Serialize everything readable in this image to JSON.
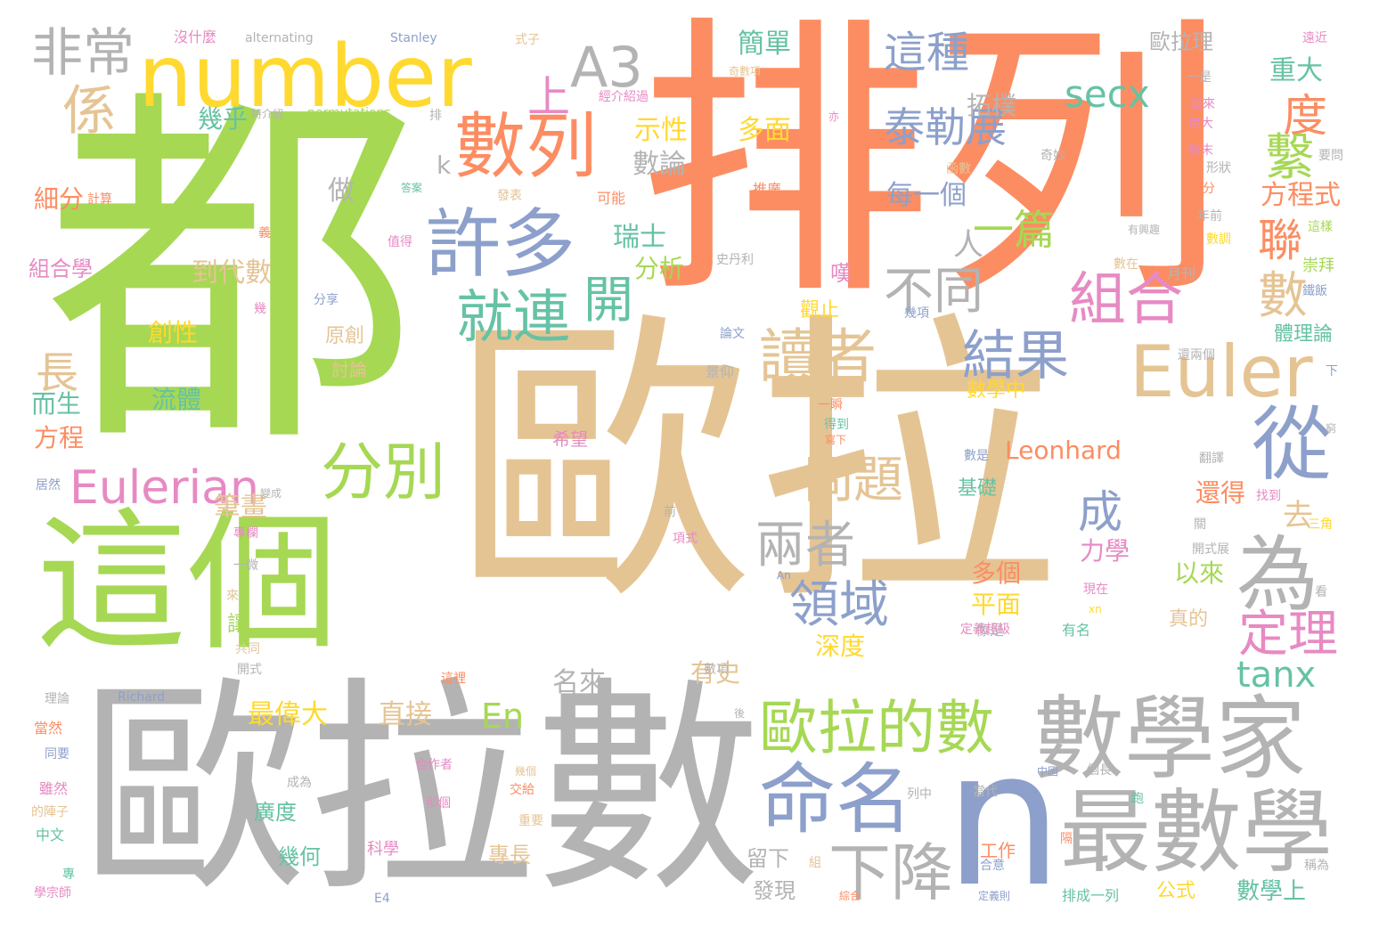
{
  "palette": {
    "green": "#a6d854",
    "orange": "#fc8d62",
    "tan": "#e5c494",
    "gray": "#b3b3b3",
    "blue": "#8da0cb",
    "teal": "#66c2a5",
    "pink": "#e78ac3",
    "yellow": "#ffd92f"
  },
  "words": [
    {
      "text": "歐拉",
      "color": "tan"
    },
    {
      "text": "排列",
      "color": "orange"
    },
    {
      "text": "都",
      "color": "green"
    },
    {
      "text": "歐拉數",
      "color": "gray"
    },
    {
      "text": "這個",
      "color": "green"
    },
    {
      "text": "number",
      "color": "yellow"
    },
    {
      "text": "數學家",
      "color": "gray"
    },
    {
      "text": "n",
      "color": "blue"
    },
    {
      "text": "最數學",
      "color": "gray"
    },
    {
      "text": "數列",
      "color": "orange"
    },
    {
      "text": "許多",
      "color": "blue"
    },
    {
      "text": "Euler",
      "color": "tan"
    },
    {
      "text": "A3",
      "color": "gray"
    },
    {
      "text": "命名",
      "color": "blue"
    },
    {
      "text": "歐拉的數",
      "color": "green"
    },
    {
      "text": "讀者",
      "color": "tan"
    },
    {
      "text": "從",
      "color": "blue"
    },
    {
      "text": "為",
      "color": "gray"
    },
    {
      "text": "Eulerian",
      "color": "pink"
    },
    {
      "text": "分別",
      "color": "green"
    },
    {
      "text": "下降",
      "color": "gray"
    },
    {
      "text": "就連",
      "color": "teal"
    },
    {
      "text": "組合",
      "color": "pink"
    },
    {
      "text": "結果",
      "color": "blue"
    },
    {
      "text": "非常",
      "color": "gray"
    },
    {
      "text": "係",
      "color": "tan"
    },
    {
      "text": "這種",
      "color": "blue"
    },
    {
      "text": "泰勒展",
      "color": "blue"
    },
    {
      "text": "問題",
      "color": "tan"
    },
    {
      "text": "兩者",
      "color": "gray"
    },
    {
      "text": "領域",
      "color": "blue"
    },
    {
      "text": "定理",
      "color": "pink"
    },
    {
      "text": "不同",
      "color": "gray"
    },
    {
      "text": "一篇",
      "color": "green"
    },
    {
      "text": "成",
      "color": "blue"
    },
    {
      "text": "開",
      "color": "teal"
    },
    {
      "text": "數",
      "color": "tan"
    },
    {
      "text": "繫",
      "color": "green"
    },
    {
      "text": "聯",
      "color": "orange"
    },
    {
      "text": "度",
      "color": "orange"
    },
    {
      "text": "長",
      "color": "tan"
    },
    {
      "text": "secx",
      "color": "teal"
    },
    {
      "text": "tanx",
      "color": "teal"
    },
    {
      "text": "En",
      "color": "green"
    },
    {
      "text": "上",
      "color": "pink"
    },
    {
      "text": "Leonhard",
      "color": "orange"
    },
    {
      "text": "方程式",
      "color": "orange"
    },
    {
      "text": "拓樸",
      "color": "gray"
    },
    {
      "text": "每一個",
      "color": "blue"
    },
    {
      "text": "人",
      "color": "gray"
    },
    {
      "text": "去",
      "color": "tan"
    },
    {
      "text": "簡單",
      "color": "teal"
    },
    {
      "text": "多面",
      "color": "yellow"
    },
    {
      "text": "數論",
      "color": "gray"
    },
    {
      "text": "示性",
      "color": "yellow"
    },
    {
      "text": "瑞士",
      "color": "teal"
    },
    {
      "text": "分析",
      "color": "green"
    },
    {
      "text": "重大",
      "color": "teal"
    },
    {
      "text": "歐拉理",
      "color": "gray"
    },
    {
      "text": "幾乎",
      "color": "teal"
    },
    {
      "text": "到代數",
      "color": "tan"
    },
    {
      "text": "組合學",
      "color": "pink"
    },
    {
      "text": "細分",
      "color": "orange"
    },
    {
      "text": "做",
      "color": "gray"
    },
    {
      "text": "創性",
      "color": "yellow"
    },
    {
      "text": "流體",
      "color": "teal"
    },
    {
      "text": "而生",
      "color": "teal"
    },
    {
      "text": "方程",
      "color": "orange"
    },
    {
      "text": "原創",
      "color": "tan"
    },
    {
      "text": "討論",
      "color": "tan"
    },
    {
      "text": "筆畫",
      "color": "tan"
    },
    {
      "text": "讓",
      "color": "green"
    },
    {
      "text": "最偉大",
      "color": "yellow"
    },
    {
      "text": "直接",
      "color": "tan"
    },
    {
      "text": "名來",
      "color": "gray"
    },
    {
      "text": "有史",
      "color": "tan"
    },
    {
      "text": "深度",
      "color": "yellow"
    },
    {
      "text": "平面",
      "color": "yellow"
    },
    {
      "text": "多個",
      "color": "orange"
    },
    {
      "text": "以來",
      "color": "green"
    },
    {
      "text": "力學",
      "color": "pink"
    },
    {
      "text": "還得",
      "color": "orange"
    },
    {
      "text": "基礎",
      "color": "teal"
    },
    {
      "text": "數學中",
      "color": "yellow"
    },
    {
      "text": "觀止",
      "color": "yellow"
    },
    {
      "text": "嘆",
      "color": "pink"
    },
    {
      "text": "希望",
      "color": "pink"
    },
    {
      "text": "廣度",
      "color": "teal"
    },
    {
      "text": "幾何",
      "color": "teal"
    },
    {
      "text": "留下",
      "color": "gray"
    },
    {
      "text": "發現",
      "color": "gray"
    },
    {
      "text": "專長",
      "color": "tan"
    },
    {
      "text": "工作",
      "color": "orange"
    },
    {
      "text": "公式",
      "color": "yellow"
    },
    {
      "text": "數學上",
      "color": "teal"
    },
    {
      "text": "排成一列",
      "color": "teal"
    },
    {
      "text": "科學",
      "color": "pink"
    },
    {
      "text": "體理論",
      "color": "teal"
    },
    {
      "text": "崇拜",
      "color": "green"
    },
    {
      "text": "真的",
      "color": "tan"
    },
    {
      "text": "有名",
      "color": "teal"
    },
    {
      "text": "像是",
      "color": "gray"
    },
    {
      "text": "沒什麼",
      "color": "pink"
    },
    {
      "text": "alternating",
      "color": "gray"
    },
    {
      "text": "Stanley",
      "color": "blue"
    },
    {
      "text": "式子",
      "color": "tan"
    },
    {
      "text": "奇數項",
      "color": "tan"
    },
    {
      "text": "經介紹過",
      "color": "pink"
    },
    {
      "text": "特介紹",
      "color": "gray"
    },
    {
      "text": "permutations",
      "color": "green"
    },
    {
      "text": "排",
      "color": "gray"
    },
    {
      "text": "亦",
      "color": "pink"
    },
    {
      "text": "計算",
      "color": "orange"
    },
    {
      "text": "答案",
      "color": "teal"
    },
    {
      "text": "發表",
      "color": "tan"
    },
    {
      "text": "可能",
      "color": "orange"
    },
    {
      "text": "推廣",
      "color": "orange"
    },
    {
      "text": "函數",
      "color": "tan"
    },
    {
      "text": "奇妙",
      "color": "gray"
    },
    {
      "text": "一是",
      "color": "gray"
    },
    {
      "text": "起來",
      "color": "pink"
    },
    {
      "text": "用大",
      "color": "pink"
    },
    {
      "text": "始末",
      "color": "pink"
    },
    {
      "text": "形狀",
      "color": "gray"
    },
    {
      "text": "積分",
      "color": "orange"
    },
    {
      "text": "要問",
      "color": "gray"
    },
    {
      "text": "年前",
      "color": "gray"
    },
    {
      "text": "遠近",
      "color": "pink"
    },
    {
      "text": "這樣",
      "color": "green"
    },
    {
      "text": "數調",
      "color": "yellow"
    },
    {
      "text": "有興趣",
      "color": "gray"
    },
    {
      "text": "數在",
      "color": "tan"
    },
    {
      "text": "月刊",
      "color": "gray"
    },
    {
      "text": "鐵飯",
      "color": "blue"
    },
    {
      "text": "義",
      "color": "orange"
    },
    {
      "text": "值得",
      "color": "pink"
    },
    {
      "text": "史丹利",
      "color": "gray"
    },
    {
      "text": "分享",
      "color": "blue"
    },
    {
      "text": "幾",
      "color": "pink"
    },
    {
      "text": "幾項",
      "color": "blue"
    },
    {
      "text": "論文",
      "color": "blue"
    },
    {
      "text": "景仰",
      "color": "gray"
    },
    {
      "text": "還兩個",
      "color": "gray"
    },
    {
      "text": "下",
      "color": "blue"
    },
    {
      "text": "一瞬",
      "color": "orange"
    },
    {
      "text": "得到",
      "color": "teal"
    },
    {
      "text": "寫下",
      "color": "orange"
    },
    {
      "text": "窮",
      "color": "gray"
    },
    {
      "text": "數是",
      "color": "blue"
    },
    {
      "text": "翻譯",
      "color": "gray"
    },
    {
      "text": "找到",
      "color": "pink"
    },
    {
      "text": "居然",
      "color": "blue"
    },
    {
      "text": "變成",
      "color": "gray"
    },
    {
      "text": "專欄",
      "color": "pink"
    },
    {
      "text": "前",
      "color": "gray"
    },
    {
      "text": "一微",
      "color": "gray"
    },
    {
      "text": "項式",
      "color": "pink"
    },
    {
      "text": "An",
      "color": "blue"
    },
    {
      "text": "現在",
      "color": "pink"
    },
    {
      "text": "xn",
      "color": "yellow"
    },
    {
      "text": "關",
      "color": "gray"
    },
    {
      "text": "開式展",
      "color": "gray"
    },
    {
      "text": "三角",
      "color": "yellow"
    },
    {
      "text": "看",
      "color": "gray"
    },
    {
      "text": "來",
      "color": "tan"
    },
    {
      "text": "共同",
      "color": "tan"
    },
    {
      "text": "開式",
      "color": "gray"
    },
    {
      "text": "定義超級",
      "color": "pink"
    },
    {
      "text": "數項",
      "color": "gray"
    },
    {
      "text": "這裡",
      "color": "orange"
    },
    {
      "text": "理論",
      "color": "gray"
    },
    {
      "text": "Richard",
      "color": "blue"
    },
    {
      "text": "後",
      "color": "gray"
    },
    {
      "text": "當然",
      "color": "orange"
    },
    {
      "text": "同要",
      "color": "blue"
    },
    {
      "text": "合作者",
      "color": "pink"
    },
    {
      "text": "成為",
      "color": "gray"
    },
    {
      "text": "幾個",
      "color": "tan"
    },
    {
      "text": "交給",
      "color": "orange"
    },
    {
      "text": "那個",
      "color": "pink"
    },
    {
      "text": "重要",
      "color": "tan"
    },
    {
      "text": "列中",
      "color": "gray"
    },
    {
      "text": "當代",
      "color": "gray"
    },
    {
      "text": "中國",
      "color": "blue"
    },
    {
      "text": "個長",
      "color": "gray"
    },
    {
      "text": "跑",
      "color": "teal"
    },
    {
      "text": "隔",
      "color": "orange"
    },
    {
      "text": "合意",
      "color": "blue"
    },
    {
      "text": "雖然",
      "color": "pink"
    },
    {
      "text": "的陣子",
      "color": "tan"
    },
    {
      "text": "中文",
      "color": "teal"
    },
    {
      "text": "專",
      "color": "teal"
    },
    {
      "text": "學宗師",
      "color": "pink"
    },
    {
      "text": "E4",
      "color": "blue"
    },
    {
      "text": "組",
      "color": "tan"
    },
    {
      "text": "綜合",
      "color": "orange"
    },
    {
      "text": "定義則",
      "color": "blue"
    },
    {
      "text": "稱為",
      "color": "gray"
    },
    {
      "text": "k",
      "color": "gray"
    }
  ]
}
